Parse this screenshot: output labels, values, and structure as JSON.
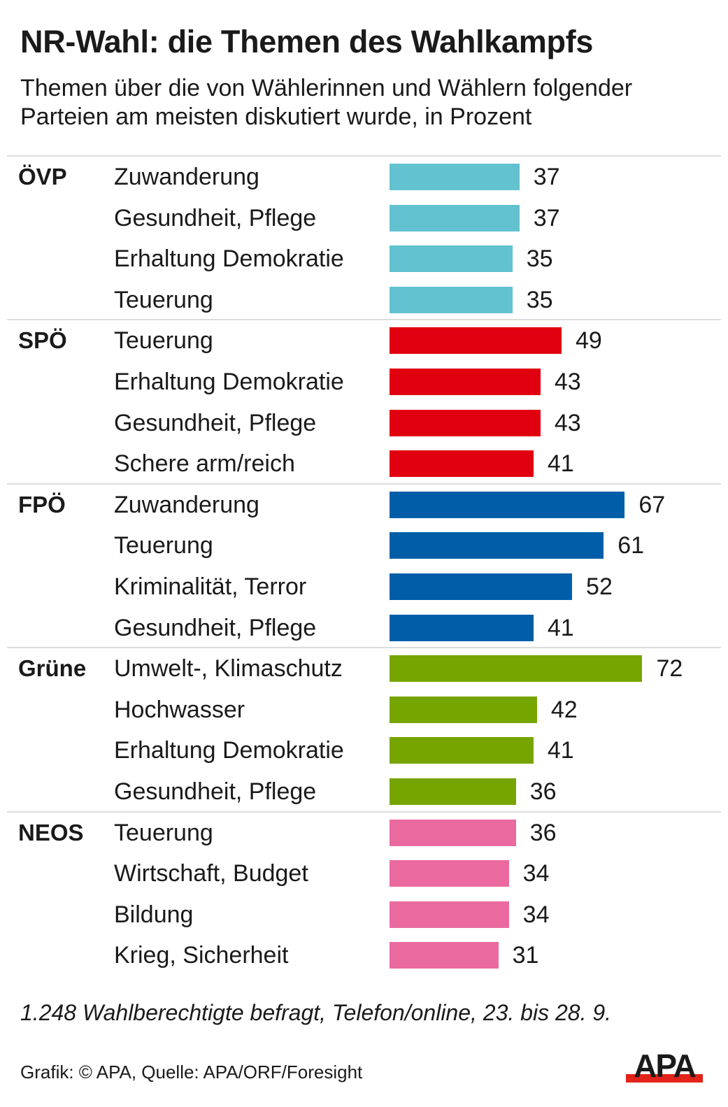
{
  "title": "NR-Wahl: die Themen des Wahlkampfs",
  "subtitle": "Themen über die von Wählerinnen und Wählern folgender Parteien am meisten diskutiert wurde, in Prozent",
  "note": "1.248 Wahlberechtigte befragt, Telefon/online, 23. bis 28. 9.",
  "credit": "Grafik: © APA, Quelle: APA/ORF/Foresight",
  "logo": {
    "text": "APA",
    "text_color": "#1a1a1a",
    "bar_color": "#e2231a"
  },
  "chart_data": {
    "type": "bar",
    "orientation": "horizontal",
    "title": "NR-Wahl: die Themen des Wahlkampfs",
    "subtitle": "Themen über die von Wählerinnen und Wählern folgender Parteien am meisten diskutiert wurde, in Prozent",
    "xlabel": "",
    "ylabel": "",
    "unit": "Prozent",
    "xlim": [
      0,
      100
    ],
    "grid": false,
    "legend": "none",
    "groups": [
      {
        "party": "ÖVP",
        "color": "#62c2cf",
        "items": [
          {
            "label": "Zuwanderung",
            "value": 37
          },
          {
            "label": "Gesundheit, Pflege",
            "value": 37
          },
          {
            "label": "Erhaltung Demokratie",
            "value": 35
          },
          {
            "label": "Teuerung",
            "value": 35
          }
        ]
      },
      {
        "party": "SPÖ",
        "color": "#e1000f",
        "items": [
          {
            "label": "Teuerung",
            "value": 49
          },
          {
            "label": "Erhaltung Demokratie",
            "value": 43
          },
          {
            "label": "Gesundheit, Pflege",
            "value": 43
          },
          {
            "label": "Schere arm/reich",
            "value": 41
          }
        ]
      },
      {
        "party": "FPÖ",
        "color": "#005ea8",
        "items": [
          {
            "label": "Zuwanderung",
            "value": 67
          },
          {
            "label": "Teuerung",
            "value": 61
          },
          {
            "label": "Kriminalität, Terror",
            "value": 52
          },
          {
            "label": "Gesundheit, Pflege",
            "value": 41
          }
        ]
      },
      {
        "party": "Grüne",
        "color": "#76a500",
        "items": [
          {
            "label": "Umwelt-, Klimaschutz",
            "value": 72
          },
          {
            "label": "Hochwasser",
            "value": 42
          },
          {
            "label": "Erhaltung Demokratie",
            "value": 41
          },
          {
            "label": "Gesundheit, Pflege",
            "value": 36
          }
        ]
      },
      {
        "party": "NEOS",
        "color": "#ea6aa0",
        "items": [
          {
            "label": "Teuerung",
            "value": 36
          },
          {
            "label": "Wirtschaft, Budget",
            "value": 34
          },
          {
            "label": "Bildung",
            "value": 34
          },
          {
            "label": "Krieg, Sicherheit",
            "value": 31
          }
        ]
      }
    ]
  }
}
